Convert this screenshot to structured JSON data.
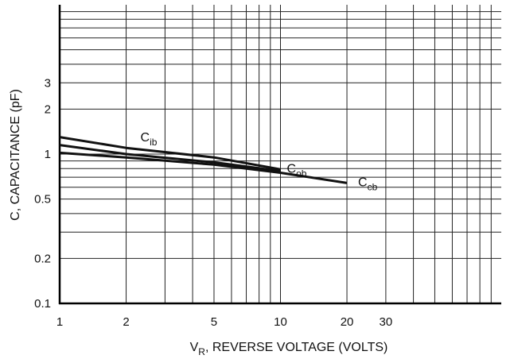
{
  "chart_data": {
    "type": "line",
    "xscale": "log",
    "yscale": "log",
    "xlim": [
      1,
      100
    ],
    "ylim": [
      0.1,
      10
    ],
    "grid": true,
    "xlabel": {
      "main": "V",
      "sub": "R",
      "rest": ", REVERSE VOLTAGE (VOLTS)"
    },
    "ylabel": "C, CAPACITANCE (pF)",
    "x_ticks": [
      {
        "value": 1,
        "label": "1"
      },
      {
        "value": 2,
        "label": "2"
      },
      {
        "value": 5,
        "label": "5"
      },
      {
        "value": 10,
        "label": "10"
      },
      {
        "value": 20,
        "label": "20"
      },
      {
        "value": 30,
        "label": "30"
      }
    ],
    "y_ticks": [
      {
        "value": 0.1,
        "label": "0.1"
      },
      {
        "value": 0.2,
        "label": "0.2"
      },
      {
        "value": 0.5,
        "label": "0.5"
      },
      {
        "value": 1,
        "label": "1"
      },
      {
        "value": 2,
        "label": "2"
      },
      {
        "value": 3,
        "label": "3"
      }
    ],
    "series": [
      {
        "name": "C",
        "sub": "ib",
        "x": [
          1,
          2,
          5,
          10
        ],
        "y": [
          1.3,
          1.1,
          0.95,
          0.79
        ]
      },
      {
        "name": "C",
        "sub": "ob",
        "x": [
          1,
          2,
          5,
          10
        ],
        "y": [
          1.15,
          1.0,
          0.88,
          0.77
        ]
      },
      {
        "name": "C",
        "sub": "cb",
        "x": [
          1,
          2,
          5,
          10,
          20
        ],
        "y": [
          1.02,
          0.95,
          0.85,
          0.75,
          0.64
        ]
      }
    ]
  }
}
